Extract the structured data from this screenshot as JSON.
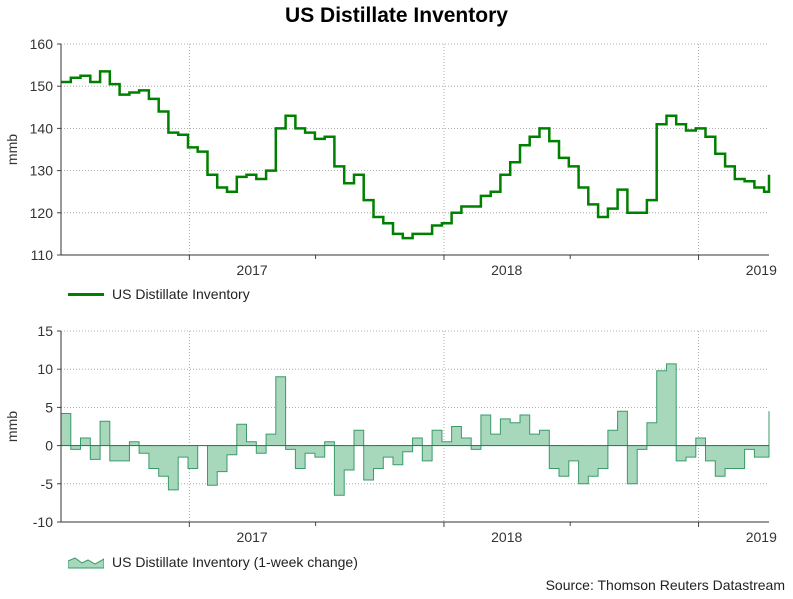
{
  "title": "US Distillate Inventory",
  "source": "Source: Thomson Reuters Datastream",
  "colors": {
    "level_line": "#008000",
    "change_fill": "#a8d8bc",
    "change_stroke": "#3a9a6a",
    "grid": "#9a9a9a"
  },
  "chart_data": [
    {
      "type": "line",
      "name": "US Distillate Inventory",
      "ylabel": "mmb",
      "xlabel": "",
      "ylim": [
        110,
        160
      ],
      "yticks": [
        110,
        120,
        130,
        140,
        150,
        160
      ],
      "xlim": [
        "2016-07-01",
        "2019-04-12"
      ],
      "xtick_labels": [
        "2017",
        "2018",
        "2019"
      ],
      "legend_label": "US Distillate Inventory",
      "x": [
        "2016-07-01",
        "2016-07-15",
        "2016-07-29",
        "2016-08-12",
        "2016-08-26",
        "2016-09-09",
        "2016-09-23",
        "2016-10-07",
        "2016-10-21",
        "2016-11-04",
        "2016-11-18",
        "2016-12-02",
        "2016-12-16",
        "2016-12-30",
        "2017-01-13",
        "2017-01-27",
        "2017-02-10",
        "2017-02-24",
        "2017-03-10",
        "2017-03-24",
        "2017-04-07",
        "2017-04-21",
        "2017-05-05",
        "2017-05-19",
        "2017-06-02",
        "2017-06-16",
        "2017-06-30",
        "2017-07-14",
        "2017-07-28",
        "2017-08-11",
        "2017-08-25",
        "2017-09-08",
        "2017-09-22",
        "2017-10-06",
        "2017-10-20",
        "2017-11-03",
        "2017-11-17",
        "2017-12-01",
        "2017-12-15",
        "2017-12-29",
        "2018-01-12",
        "2018-01-26",
        "2018-02-09",
        "2018-02-23",
        "2018-03-09",
        "2018-03-23",
        "2018-04-06",
        "2018-04-20",
        "2018-05-04",
        "2018-05-18",
        "2018-06-01",
        "2018-06-15",
        "2018-06-29",
        "2018-07-13",
        "2018-07-27",
        "2018-08-10",
        "2018-08-24",
        "2018-09-07",
        "2018-09-21",
        "2018-10-05",
        "2018-10-19",
        "2018-11-02",
        "2018-11-16",
        "2018-11-30",
        "2018-12-14",
        "2018-12-28",
        "2019-01-11",
        "2019-01-25",
        "2019-02-08",
        "2019-02-22",
        "2019-03-08",
        "2019-03-22",
        "2019-04-05",
        "2019-04-12"
      ],
      "values": [
        151,
        152,
        152.5,
        151,
        153.5,
        150.5,
        148,
        148.5,
        149,
        147,
        144,
        139,
        138.5,
        135.5,
        134.5,
        129,
        126,
        125,
        128.5,
        129,
        128,
        130,
        140,
        143,
        140,
        139,
        137.5,
        138,
        131,
        127,
        129,
        123,
        119,
        117.5,
        115,
        114,
        115,
        115,
        117,
        117.5,
        120,
        121.5,
        121.5,
        124,
        125,
        129,
        132,
        136,
        138,
        140,
        137,
        133,
        131,
        126,
        122,
        119,
        121,
        125.5,
        120,
        120,
        123,
        141,
        143,
        141,
        139.5,
        140,
        138,
        134,
        131,
        128,
        127.5,
        126,
        125,
        129
      ]
    },
    {
      "type": "area",
      "name": "US Distillate Inventory (1-week change)",
      "ylabel": "mmb",
      "xlabel": "",
      "ylim": [
        -10,
        15
      ],
      "yticks": [
        -10,
        -5,
        0,
        5,
        10,
        15
      ],
      "xlim": [
        "2016-07-01",
        "2019-04-12"
      ],
      "xtick_labels": [
        "2017",
        "2018",
        "2019"
      ],
      "legend_label": "US Distillate Inventory (1-week change)",
      "x": [
        "2016-07-01",
        "2016-07-15",
        "2016-07-29",
        "2016-08-12",
        "2016-08-26",
        "2016-09-09",
        "2016-09-23",
        "2016-10-07",
        "2016-10-21",
        "2016-11-04",
        "2016-11-18",
        "2016-12-02",
        "2016-12-16",
        "2016-12-30",
        "2017-01-13",
        "2017-01-27",
        "2017-02-10",
        "2017-02-24",
        "2017-03-10",
        "2017-03-24",
        "2017-04-07",
        "2017-04-21",
        "2017-05-05",
        "2017-05-19",
        "2017-06-02",
        "2017-06-16",
        "2017-06-30",
        "2017-07-14",
        "2017-07-28",
        "2017-08-11",
        "2017-08-25",
        "2017-09-08",
        "2017-09-22",
        "2017-10-06",
        "2017-10-20",
        "2017-11-03",
        "2017-11-17",
        "2017-12-01",
        "2017-12-15",
        "2017-12-29",
        "2018-01-12",
        "2018-01-26",
        "2018-02-09",
        "2018-02-23",
        "2018-03-09",
        "2018-03-23",
        "2018-04-06",
        "2018-04-20",
        "2018-05-04",
        "2018-05-18",
        "2018-06-01",
        "2018-06-15",
        "2018-06-29",
        "2018-07-13",
        "2018-07-27",
        "2018-08-10",
        "2018-08-24",
        "2018-09-07",
        "2018-09-21",
        "2018-10-05",
        "2018-10-19",
        "2018-11-02",
        "2018-11-16",
        "2018-11-30",
        "2018-12-14",
        "2018-12-28",
        "2019-01-11",
        "2019-01-25",
        "2019-02-08",
        "2019-02-22",
        "2019-03-08",
        "2019-03-22",
        "2019-04-05",
        "2019-04-12"
      ],
      "values": [
        4.2,
        -0.5,
        1,
        -1.8,
        3.2,
        -2,
        -2,
        0.5,
        -1,
        -3,
        -4,
        -5.8,
        -1.5,
        -3,
        0,
        -5.2,
        -3.4,
        -1.2,
        2.8,
        0.5,
        -1,
        1.5,
        9,
        -0.5,
        -3,
        -1,
        -1.5,
        0.5,
        -6.5,
        -3.2,
        2,
        -4.5,
        -3,
        -1.5,
        -2.5,
        -0.8,
        1,
        -2,
        2,
        0.5,
        2.5,
        1,
        -0.5,
        4,
        1.5,
        3.5,
        3,
        4,
        1.5,
        2,
        -3,
        -4,
        -2,
        -5,
        -4,
        -3,
        2,
        4.5,
        -5,
        -0.5,
        3,
        9.8,
        10.7,
        -2,
        -1.5,
        1,
        -2,
        -4,
        -3,
        -3,
        -0.5,
        -1.5,
        -1.5,
        4.5
      ]
    }
  ]
}
